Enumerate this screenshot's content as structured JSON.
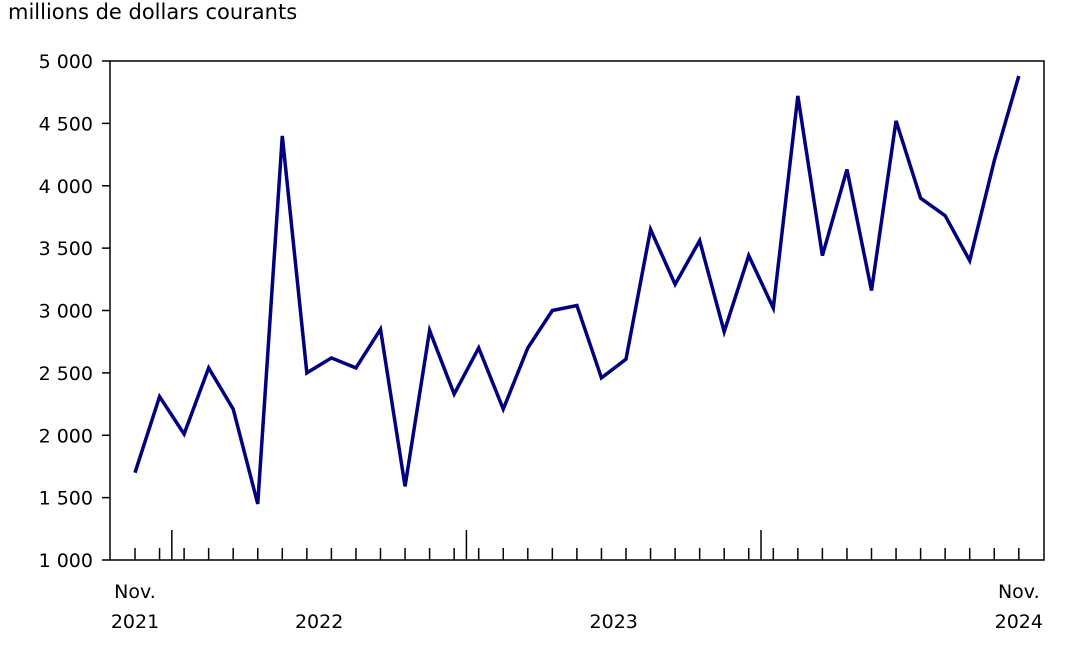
{
  "chart_data": {
    "type": "line",
    "ylabel": "millions de dollars courants",
    "ylim": [
      1000,
      5000
    ],
    "yticks": [
      1000,
      1500,
      2000,
      2500,
      3000,
      3500,
      4000,
      4500,
      5000
    ],
    "ytick_labels": [
      "1 000",
      "1 500",
      "2 000",
      "2 500",
      "3 000",
      "3 500",
      "4 000",
      "4 500",
      "5 000"
    ],
    "x_start": "2021-11",
    "x_end": "2024-11",
    "x_labels": [
      {
        "line1": "Nov.",
        "line2": "2021"
      },
      {
        "line1": "",
        "line2": "2022"
      },
      {
        "line1": "",
        "line2": "2023"
      },
      {
        "line1": "Nov.",
        "line2": "2024"
      }
    ],
    "series": [
      {
        "color": "#000080",
        "x": [
          "2021-11",
          "2021-12",
          "2022-01",
          "2022-02",
          "2022-03",
          "2022-04",
          "2022-05",
          "2022-06",
          "2022-07",
          "2022-08",
          "2022-09",
          "2022-10",
          "2022-11",
          "2022-12",
          "2023-01",
          "2023-02",
          "2023-03",
          "2023-04",
          "2023-05",
          "2023-06",
          "2023-07",
          "2023-08",
          "2023-09",
          "2023-10",
          "2023-11",
          "2023-12",
          "2024-01",
          "2024-02",
          "2024-03",
          "2024-04",
          "2024-05",
          "2024-06",
          "2024-07",
          "2024-08",
          "2024-09",
          "2024-10",
          "2024-11"
        ],
        "values": [
          1700,
          2310,
          2010,
          2540,
          2210,
          1450,
          4400,
          2500,
          2620,
          2540,
          2850,
          1590,
          2840,
          2330,
          2700,
          2210,
          2700,
          3000,
          3040,
          2460,
          2610,
          3650,
          3210,
          3560,
          2830,
          3440,
          3020,
          4720,
          3440,
          4130,
          3160,
          4520,
          3900,
          3760,
          3400,
          4200,
          4880
        ]
      }
    ],
    "grid": false,
    "legend": "none"
  }
}
